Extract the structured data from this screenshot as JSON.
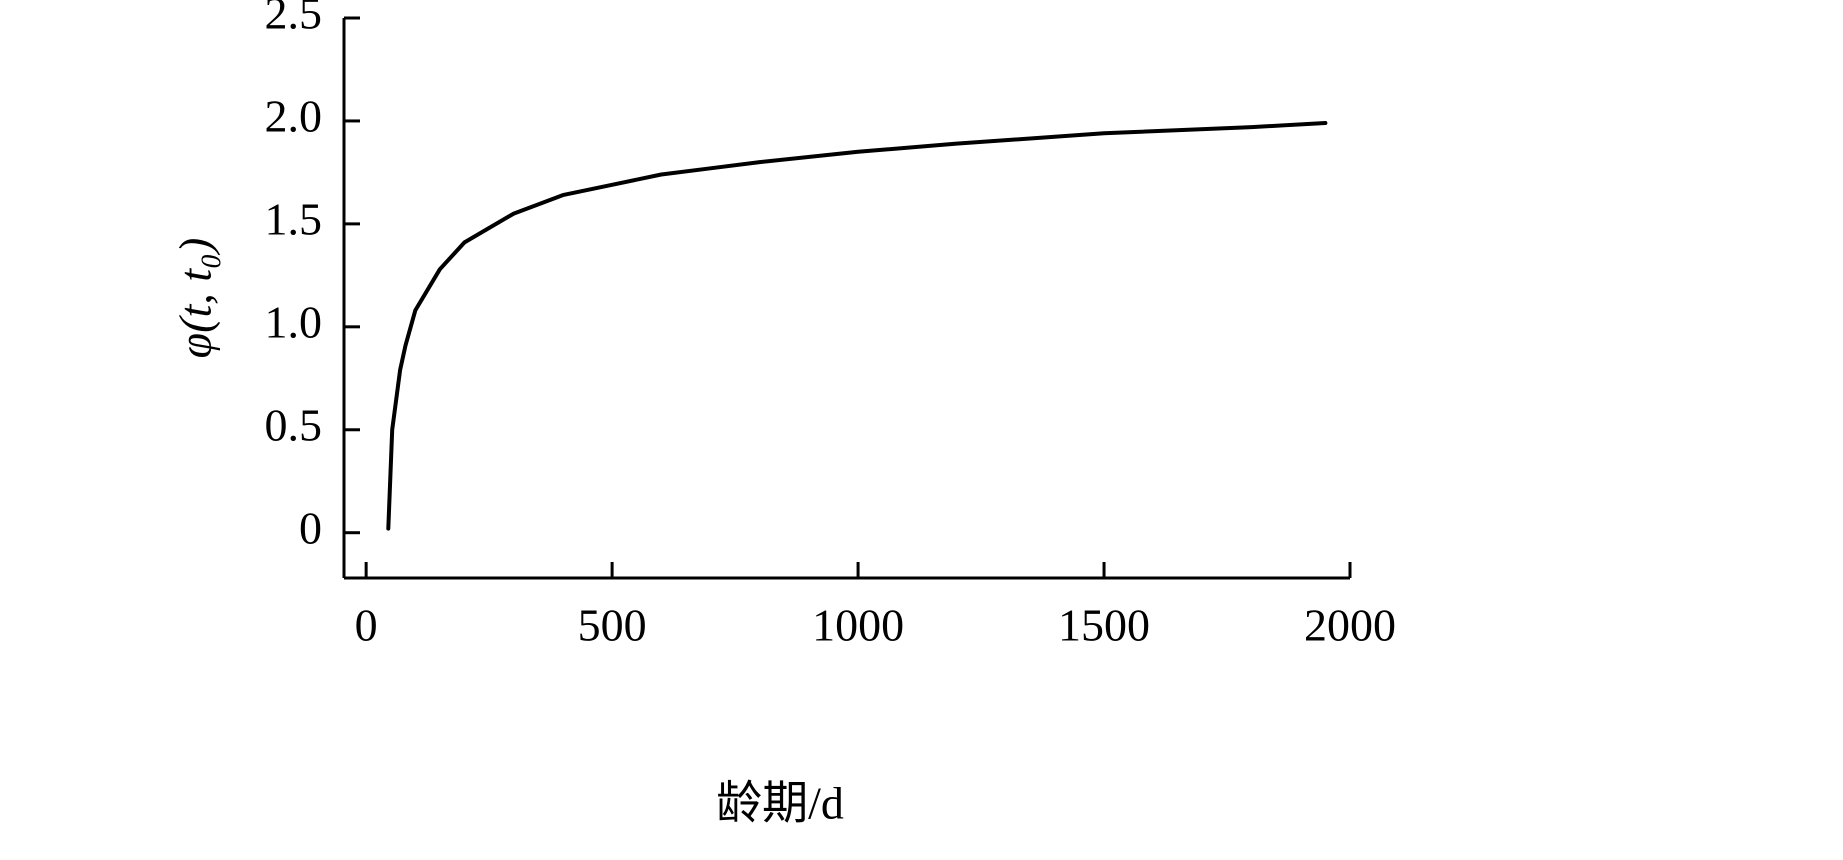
{
  "chart_data": {
    "type": "line",
    "x_label": "龄期/d",
    "y_label": "φ(t, t₀)",
    "x": [
      45,
      53,
      69,
      80,
      100,
      150,
      200,
      300,
      400,
      500,
      600,
      700,
      800,
      1000,
      1200,
      1500,
      1800,
      1950
    ],
    "values": [
      0.02,
      0.5,
      0.79,
      0.91,
      1.08,
      1.28,
      1.41,
      1.55,
      1.64,
      1.69,
      1.74,
      1.77,
      1.8,
      1.85,
      1.89,
      1.94,
      1.97,
      1.99
    ],
    "color": "#000000",
    "xlim": [
      -45,
      2000
    ],
    "ylim": [
      -0.22,
      2.5
    ],
    "xticks": [
      0,
      500,
      1000,
      1500,
      2000
    ],
    "yticks": [
      0,
      0.5,
      {
        "value": 1,
        "label": "1.0"
      },
      1.5,
      {
        "value": 2,
        "label": "2.0"
      },
      2.5
    ]
  }
}
